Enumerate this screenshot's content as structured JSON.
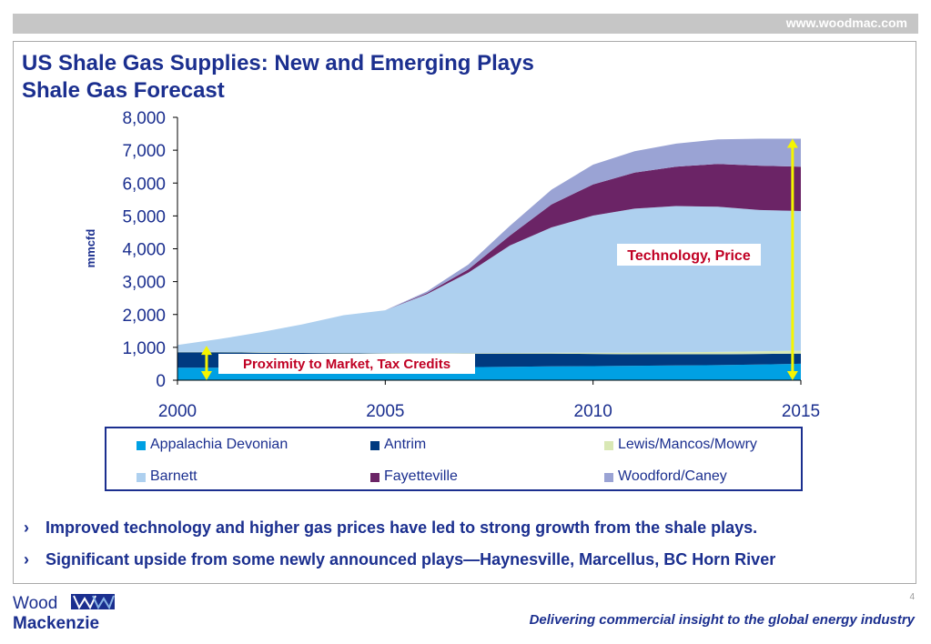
{
  "header": {
    "url": "www.woodmac.com"
  },
  "title": {
    "line1": "US Shale Gas Supplies: New and Emerging Plays",
    "line2": "Shale Gas Forecast"
  },
  "chart_data": {
    "type": "area",
    "stacked": true,
    "ylabel": "mmcfd",
    "xlabel": "",
    "xlim": [
      2000,
      2015
    ],
    "ylim": [
      0,
      8000
    ],
    "x_ticks": [
      2000,
      2005,
      2010,
      2015
    ],
    "y_ticks": [
      0,
      1000,
      2000,
      3000,
      4000,
      5000,
      6000,
      7000,
      8000
    ],
    "y_tick_labels": [
      "0",
      "1,000",
      "2,000",
      "3,000",
      "4,000",
      "5,000",
      "6,000",
      "7,000",
      "8,000"
    ],
    "x": [
      2000,
      2001,
      2002,
      2003,
      2004,
      2005,
      2006,
      2007,
      2008,
      2009,
      2010,
      2011,
      2012,
      2013,
      2014,
      2015
    ],
    "series": [
      {
        "name": "Appalachia Devonian",
        "color": "#00a0e3",
        "values": [
          380,
          380,
          380,
          380,
          380,
          380,
          380,
          400,
          410,
          420,
          430,
          440,
          450,
          460,
          480,
          500
        ]
      },
      {
        "name": "Antrim",
        "color": "#003a80",
        "values": [
          470,
          470,
          460,
          450,
          440,
          430,
          420,
          410,
          400,
          390,
          370,
          350,
          340,
          330,
          320,
          310
        ]
      },
      {
        "name": "Lewis/Mancos/Mowry",
        "color": "#d9e8b5",
        "values": [
          10,
          10,
          10,
          10,
          10,
          10,
          10,
          15,
          20,
          30,
          40,
          50,
          60,
          70,
          80,
          90
        ]
      },
      {
        "name": "Barnett",
        "color": "#aed0ef",
        "values": [
          210,
          390,
          610,
          860,
          1150,
          1310,
          1810,
          2450,
          3270,
          3810,
          4170,
          4380,
          4450,
          4420,
          4300,
          4250
        ]
      },
      {
        "name": "Fayetteville",
        "color": "#6b2466",
        "values": [
          0,
          0,
          0,
          0,
          0,
          0,
          30,
          100,
          300,
          700,
          950,
          1100,
          1200,
          1300,
          1350,
          1350
        ]
      },
      {
        "name": "Woodford/Caney",
        "color": "#9aa3d4",
        "values": [
          0,
          0,
          0,
          0,
          0,
          0,
          50,
          150,
          300,
          450,
          600,
          650,
          700,
          750,
          820,
          850
        ]
      }
    ],
    "annotations": [
      {
        "text": "Technology, Price",
        "color": "#c00023"
      },
      {
        "text": "Proximity to Market, Tax Credits",
        "color": "#c00023"
      }
    ],
    "arrows": [
      {
        "x": 2000.7,
        "from": 0,
        "to": 1050,
        "color": "#f5f500"
      },
      {
        "x": 2014.8,
        "from": 0,
        "to": 7350,
        "color": "#f5f500"
      }
    ]
  },
  "bullets": [
    {
      "marker": "›",
      "text": "Improved technology and higher gas prices have led to strong growth from the shale plays."
    },
    {
      "marker": "›",
      "text": "Significant upside from some newly announced plays—Haynesville, Marcellus, BC Horn River"
    }
  ],
  "footer": {
    "page_number": "4",
    "tagline": "Delivering commercial insight to the global energy industry",
    "logo_word1": "Wood",
    "logo_word2": "Mackenzie"
  }
}
